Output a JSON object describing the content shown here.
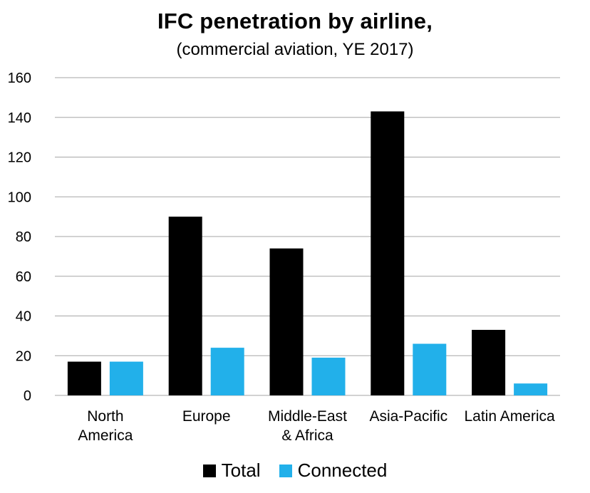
{
  "chart_data": {
    "type": "bar",
    "title": "IFC penetration by airline,",
    "subtitle": "(commercial aviation, YE 2017)",
    "categories": [
      [
        "North",
        "America"
      ],
      [
        "Europe"
      ],
      [
        "Middle-East",
        "& Africa"
      ],
      [
        "Asia-Pacific"
      ],
      [
        "Latin America"
      ]
    ],
    "series": [
      {
        "name": "Total",
        "color": "#000000",
        "values": [
          17,
          90,
          74,
          143,
          33
        ]
      },
      {
        "name": "Connected",
        "color": "#22b0ea",
        "values": [
          17,
          24,
          19,
          26,
          6
        ]
      }
    ],
    "ylim": [
      0,
      160
    ],
    "yticks": [
      0,
      20,
      40,
      60,
      80,
      100,
      120,
      140,
      160
    ],
    "grid": true,
    "gridColor": "#a6a6a6",
    "legend_position": "bottom"
  }
}
